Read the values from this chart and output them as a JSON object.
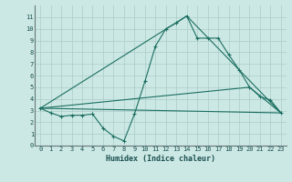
{
  "xlabel": "Humidex (Indice chaleur)",
  "background_color": "#cce8e4",
  "grid_color": "#aaccc8",
  "line_color": "#1a6e60",
  "xlim": [
    -0.5,
    23.5
  ],
  "ylim": [
    0,
    12
  ],
  "xticks": [
    0,
    1,
    2,
    3,
    4,
    5,
    6,
    7,
    8,
    9,
    10,
    11,
    12,
    13,
    14,
    15,
    16,
    17,
    18,
    19,
    20,
    21,
    22,
    23
  ],
  "yticks": [
    0,
    1,
    2,
    3,
    4,
    5,
    6,
    7,
    8,
    9,
    10,
    11
  ],
  "line1_x": [
    0,
    1,
    2,
    3,
    4,
    5,
    6,
    7,
    8,
    9,
    10,
    11,
    12,
    13,
    14,
    15,
    16,
    17,
    18,
    19,
    20,
    21,
    22,
    23
  ],
  "line1_y": [
    3.2,
    2.8,
    2.5,
    2.6,
    2.6,
    2.7,
    1.5,
    0.8,
    0.4,
    2.7,
    5.5,
    8.5,
    10.0,
    10.5,
    11.1,
    9.2,
    9.2,
    9.2,
    7.8,
    6.5,
    5.0,
    4.2,
    3.9,
    2.8
  ],
  "line2_x": [
    0,
    14,
    23
  ],
  "line2_y": [
    3.2,
    11.1,
    2.8
  ],
  "line3_x": [
    0,
    23
  ],
  "line3_y": [
    3.2,
    2.8
  ],
  "line4_x": [
    0,
    20,
    23
  ],
  "line4_y": [
    3.2,
    5.0,
    2.8
  ]
}
